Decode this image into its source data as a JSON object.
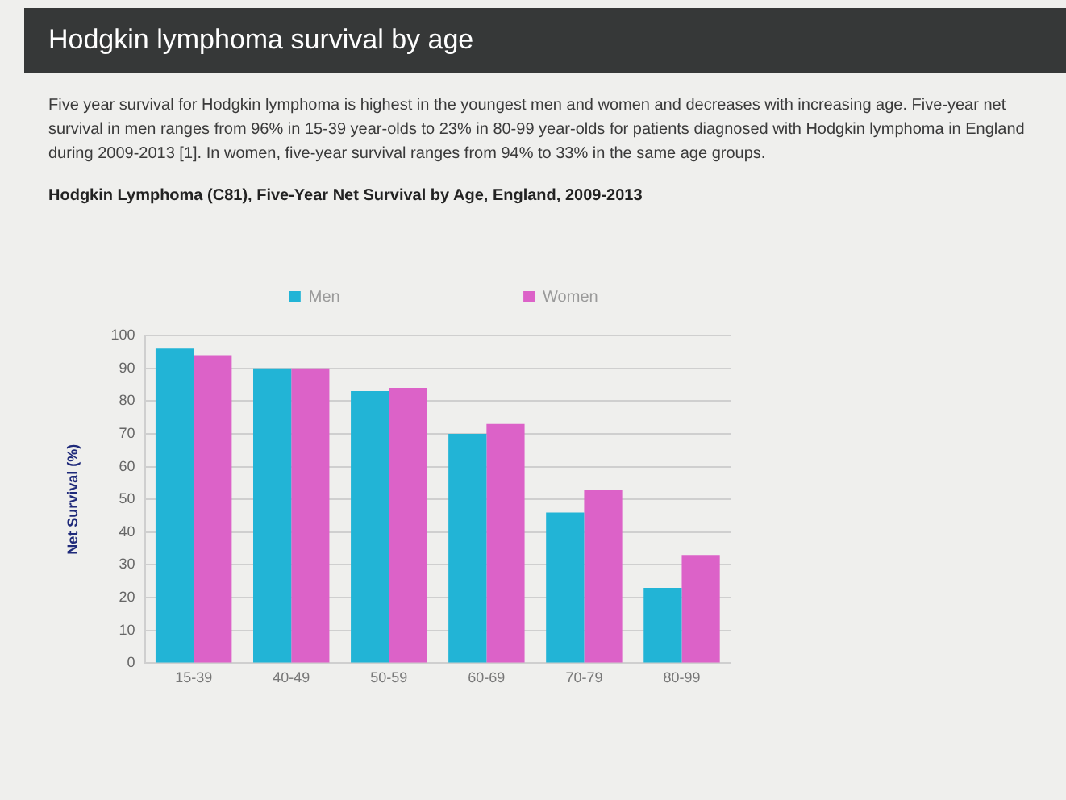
{
  "chart_data": {
    "type": "bar",
    "title": "Hodgkin lymphoma survival by age",
    "annotations": [
      "Five year survival for Hodgkin lymphoma is highest in the youngest men and women and decreases with increasing age. Five-year net survival in men ranges from 96% in 15-39 year-olds to 23% in 80-99 year-olds for patients diagnosed with Hodgkin lymphoma in England during 2009-2013 [1]. In women, five-year survival ranges from 94% to 33% in the same age groups."
    ],
    "subtitle": "Hodgkin Lymphoma (C81), Five-Year Net Survival by Age, England, 2009-2013",
    "ylabel": "Net Survival (%)",
    "categories": [
      "15-39",
      "40-49",
      "50-59",
      "60-69",
      "70-79",
      "80-99"
    ],
    "series": [
      {
        "name": "Men",
        "color": "#22b4d6",
        "values": [
          96,
          90,
          83,
          70,
          46,
          23
        ]
      },
      {
        "name": "Women",
        "color": "#dc62c8",
        "values": [
          94,
          90,
          84,
          73,
          53,
          33
        ]
      }
    ],
    "ylim": [
      0,
      100
    ],
    "yticks": [
      0,
      10,
      20,
      30,
      40,
      50,
      60,
      70,
      80,
      90,
      100
    ],
    "grid": "y",
    "legend": "top"
  }
}
